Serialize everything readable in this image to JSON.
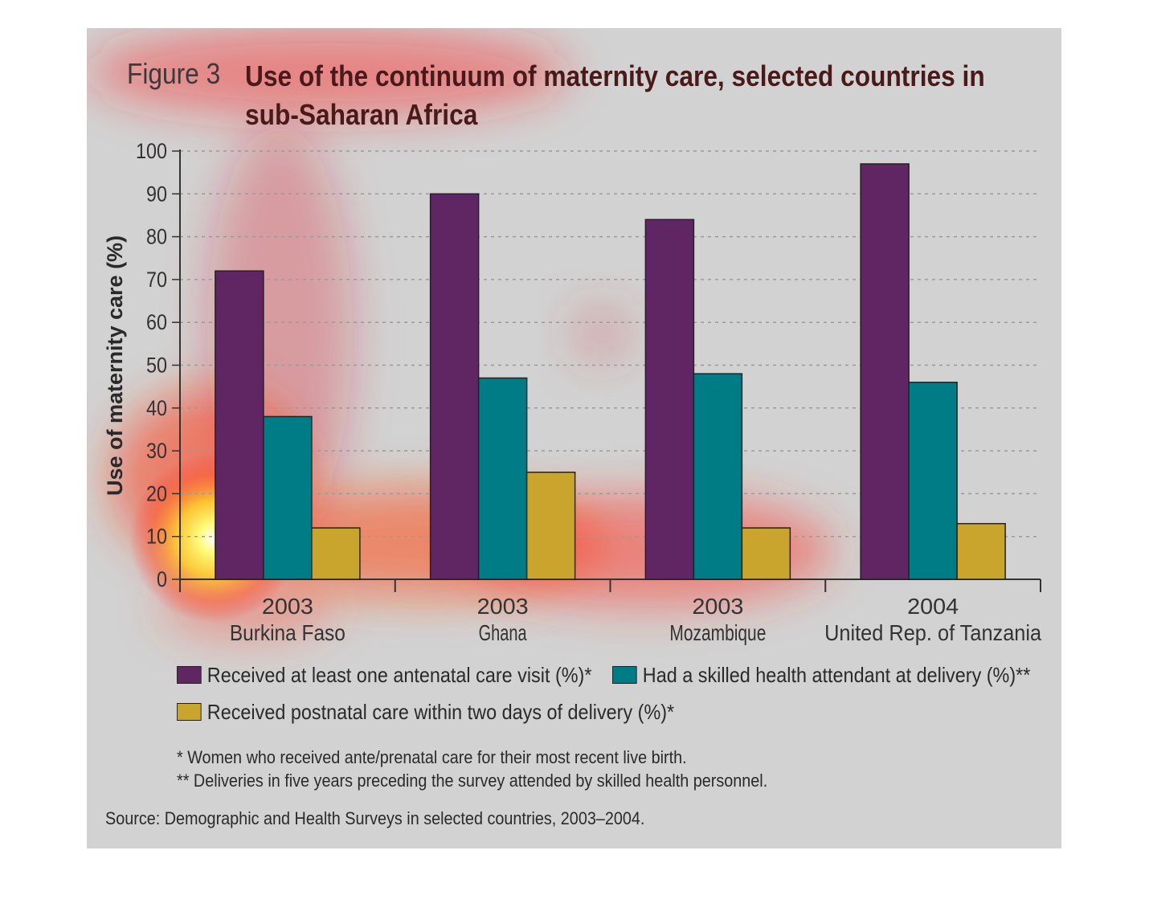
{
  "figure": {
    "label": "Figure 3",
    "title": "Use of the continuum of maternity care, selected countries in sub-Saharan Africa"
  },
  "chart_data": {
    "type": "bar",
    "ylabel": "Use of maternity care (%)",
    "ylim": [
      0,
      100
    ],
    "yticks": [
      0,
      10,
      20,
      30,
      40,
      50,
      60,
      70,
      80,
      90,
      100
    ],
    "grid": true,
    "legend_position": "bottom",
    "categories": [
      {
        "year": "2003",
        "name": "Burkina Faso"
      },
      {
        "year": "2003",
        "name": "Ghana"
      },
      {
        "year": "2003",
        "name": "Mozambique"
      },
      {
        "year": "2004",
        "name": "United Rep. of Tanzania"
      }
    ],
    "series": [
      {
        "name": "Received at least one antenatal care visit (%)*",
        "color": "#602664",
        "values": [
          72,
          90,
          84,
          97
        ]
      },
      {
        "name": "Had a skilled health attendant at delivery (%)**",
        "color": "#007c87",
        "values": [
          38,
          47,
          48,
          46
        ]
      },
      {
        "name": "Received postnatal care within two days of delivery (%)*",
        "color": "#c9a52d",
        "values": [
          12,
          25,
          12,
          13
        ]
      }
    ]
  },
  "footnotes": [
    "* Women who received ante/prenatal care for their most recent live birth.",
    "** Deliveries in five years preceding the survey attended by skilled health personnel."
  ],
  "source": "Source: Demographic and Health Surveys in selected countries, 2003–2004."
}
